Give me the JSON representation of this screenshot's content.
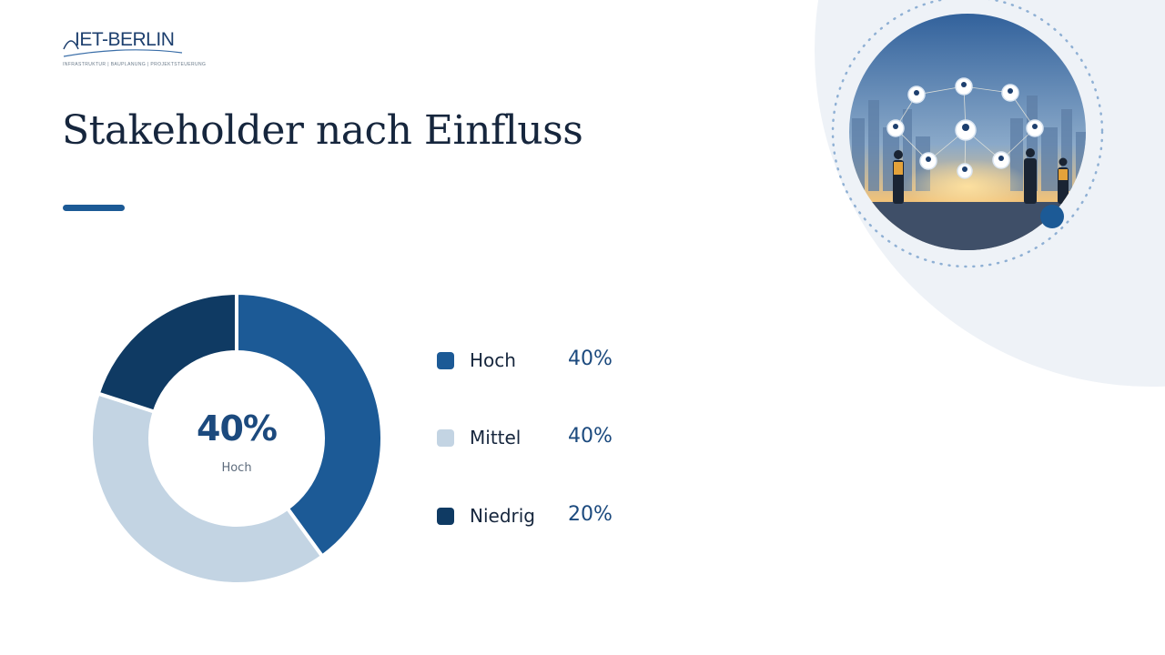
{
  "brand": {
    "name": "IET-BERLIN",
    "tagline": "INFRASTRUKTUR | BAUPLANUNG | PROJEKTSTEUERUNG"
  },
  "slide": {
    "title": "Stakeholder nach Einfluss"
  },
  "colors": {
    "accent": "#1c5a96",
    "dark": "#0f3a63",
    "light": "#c3d4e3",
    "background_arc": "#eef2f7"
  },
  "photo": {
    "icon": "stakeholder-network-photo"
  },
  "chart_data": {
    "type": "pie",
    "categories": [
      "Hoch",
      "Mittel",
      "Niedrig"
    ],
    "values": [
      40,
      40,
      20
    ],
    "value_labels": [
      "40%",
      "40%",
      "20%"
    ],
    "colors": [
      "#1c5a96",
      "#c3d4e3",
      "#0f3a63"
    ],
    "center": {
      "value": "40%",
      "label": "Hoch"
    },
    "legend_position": "right",
    "donut": true
  }
}
